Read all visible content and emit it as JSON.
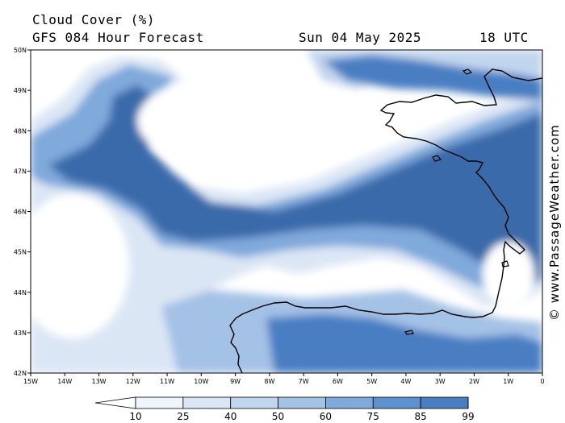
{
  "header": {
    "title": "Cloud Cover (%)",
    "model": "GFS 084 Hour Forecast",
    "date": "Sun 04 May 2025",
    "time": "18 UTC"
  },
  "credit": "© www.PassageWeather.com",
  "axes": {
    "lat_labels": [
      "50N",
      "49N",
      "48N",
      "47N",
      "46N",
      "45N",
      "44N",
      "43N",
      "42N"
    ],
    "lon_labels": [
      "15W",
      "14W",
      "13W",
      "12W",
      "11W",
      "10W",
      "9W",
      "8W",
      "7W",
      "6W",
      "5W",
      "4W",
      "3W",
      "2W",
      "1W",
      "0"
    ]
  },
  "colorbar": {
    "levels": [
      "10",
      "25",
      "40",
      "50",
      "60",
      "75",
      "85",
      "99"
    ],
    "colors": [
      "#ffffff",
      "#f0f4fb",
      "#dbe6f5",
      "#c2d5ee",
      "#a4c1e6",
      "#80a9dc",
      "#5f90cf",
      "#4a7ec3",
      "#3a6aaa"
    ]
  },
  "colors": {
    "background": "#ffffff",
    "coastline": "#000000"
  }
}
